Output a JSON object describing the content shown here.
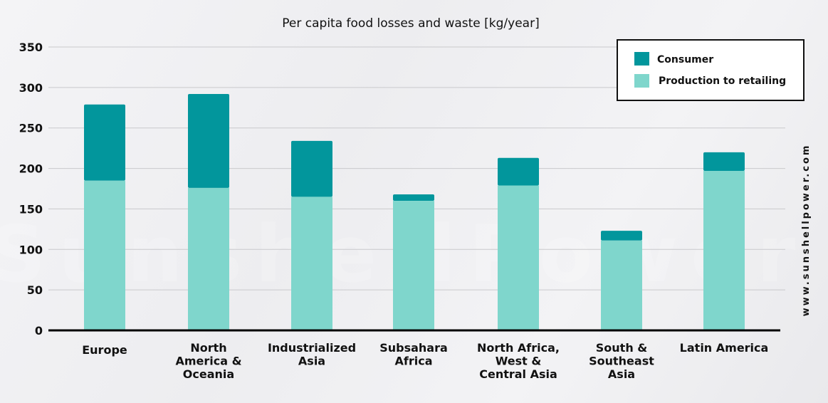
{
  "chart_data": {
    "type": "bar",
    "stacked": true,
    "title": "Per capita food losses and waste [kg/year]",
    "categories": [
      [
        "Europe"
      ],
      [
        "North",
        "America &",
        "Oceania"
      ],
      [
        "Industrialized",
        "Asia"
      ],
      [
        "Subsahara",
        "Africa"
      ],
      [
        "North Africa,",
        "West &",
        "Central Asia"
      ],
      [
        "South &",
        "Southeast",
        "Asia"
      ],
      [
        "Latin America"
      ]
    ],
    "series": [
      {
        "name": "Production to retailing",
        "color": "#7fd6cc",
        "values": [
          185,
          176,
          165,
          160,
          179,
          111,
          197
        ]
      },
      {
        "name": "Consumer",
        "color": "#02969c",
        "values": [
          94,
          116,
          69,
          8,
          34,
          12,
          23
        ]
      }
    ],
    "ylim": [
      0,
      350
    ],
    "yticks": [
      0,
      50,
      100,
      150,
      200,
      250,
      300,
      350
    ],
    "grid": true,
    "legend_position": "top-right"
  },
  "watermark": {
    "side_text": "www.sunshellpower.com",
    "center_text": "SunshellPower"
  }
}
